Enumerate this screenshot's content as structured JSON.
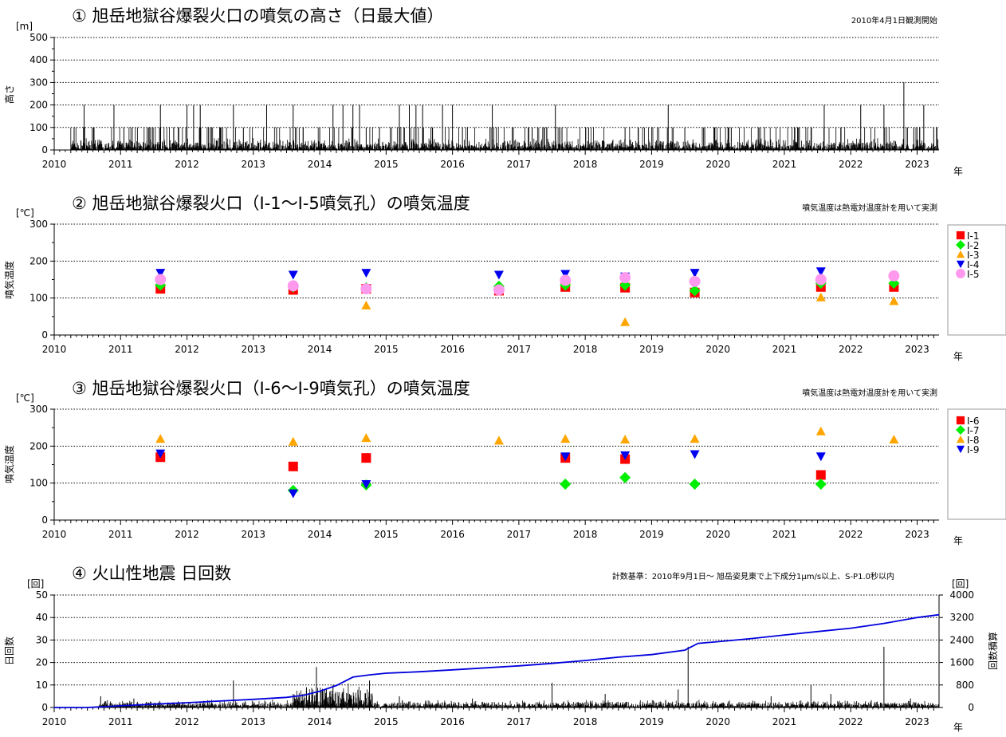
{
  "chart_data": [
    {
      "type": "bar",
      "title": "① 旭岳地獄谷爆裂火口の噴気の高さ（日最大値）",
      "note": "2010年4月1日観測開始",
      "unit": "[m]",
      "ylabel": "高さ",
      "xlabel": "年",
      "xlim": [
        2010,
        2023.33
      ],
      "ylim": [
        0,
        500
      ],
      "yticks": [
        "0",
        "100",
        "200",
        "300",
        "400",
        "500"
      ],
      "xticks": [
        "2010",
        "2011",
        "2012",
        "2013",
        "2014",
        "2015",
        "2016",
        "2017",
        "2018",
        "2019",
        "2020",
        "2021",
        "2022",
        "2023"
      ],
      "series": [
        {
          "values": [
            [
              2010.3,
              100
            ],
            [
              2010.45,
              200
            ],
            [
              2010.6,
              100
            ],
            [
              2010.9,
              200
            ],
            [
              2011.05,
              100
            ],
            [
              2011.4,
              100
            ],
            [
              2011.6,
              200
            ],
            [
              2011.8,
              100
            ],
            [
              2012.0,
              200
            ],
            [
              2012.1,
              200
            ],
            [
              2012.2,
              200
            ],
            [
              2012.35,
              100
            ],
            [
              2012.5,
              100
            ],
            [
              2012.7,
              200
            ],
            [
              2012.85,
              100
            ],
            [
              2013.2,
              200
            ],
            [
              2013.35,
              100
            ],
            [
              2013.6,
              200
            ],
            [
              2013.75,
              100
            ],
            [
              2014.0,
              100
            ],
            [
              2014.2,
              200
            ],
            [
              2014.35,
              200
            ],
            [
              2014.5,
              200
            ],
            [
              2014.6,
              200
            ],
            [
              2014.7,
              100
            ],
            [
              2014.9,
              100
            ],
            [
              2015.2,
              200
            ],
            [
              2015.35,
              200
            ],
            [
              2015.45,
              200
            ],
            [
              2015.55,
              200
            ],
            [
              2015.7,
              100
            ],
            [
              2015.85,
              200
            ],
            [
              2016.0,
              200
            ],
            [
              2016.15,
              100
            ],
            [
              2016.6,
              200
            ],
            [
              2016.9,
              100
            ],
            [
              2017.2,
              100
            ],
            [
              2017.55,
              200
            ],
            [
              2017.65,
              100
            ],
            [
              2018.05,
              100
            ],
            [
              2018.6,
              100
            ],
            [
              2018.8,
              100
            ],
            [
              2019.25,
              200
            ],
            [
              2019.5,
              100
            ],
            [
              2019.8,
              100
            ],
            [
              2020.2,
              100
            ],
            [
              2020.7,
              100
            ],
            [
              2021.2,
              100
            ],
            [
              2021.6,
              200
            ],
            [
              2021.85,
              100
            ],
            [
              2022.15,
              200
            ],
            [
              2022.5,
              200
            ],
            [
              2022.8,
              300
            ],
            [
              2022.95,
              100
            ],
            [
              2023.1,
              200
            ],
            [
              2023.25,
              100
            ]
          ]
        }
      ]
    },
    {
      "type": "scatter",
      "title": "② 旭岳地獄谷爆裂火口（I-1～I-5噴気孔）の噴気温度",
      "note": "噴気温度は熱電対温度計を用いて実測",
      "unit": "[℃]",
      "ylabel": "噴気温度",
      "xlabel": "年",
      "xlim": [
        2010,
        2023.33
      ],
      "ylim": [
        0,
        300
      ],
      "yticks": [
        "0",
        "100",
        "200",
        "300"
      ],
      "xticks": [
        "2010",
        "2011",
        "2012",
        "2013",
        "2014",
        "2015",
        "2016",
        "2017",
        "2018",
        "2019",
        "2020",
        "2021",
        "2022",
        "2023"
      ],
      "series": [
        {
          "name": "I-1",
          "color": "#ff0000",
          "marker": "square",
          "points": [
            [
              2011.6,
              125
            ],
            [
              2013.6,
              122
            ],
            [
              2014.7,
              125
            ],
            [
              2016.7,
              120
            ],
            [
              2017.7,
              130
            ],
            [
              2018.6,
              128
            ],
            [
              2019.65,
              115
            ],
            [
              2021.55,
              130
            ],
            [
              2022.65,
              130
            ]
          ]
        },
        {
          "name": "I-2",
          "color": "#00ee00",
          "marker": "diamond",
          "points": [
            [
              2011.6,
              135
            ],
            [
              2013.6,
              130
            ],
            [
              2014.7,
              128
            ],
            [
              2016.7,
              132
            ],
            [
              2017.7,
              135
            ],
            [
              2018.6,
              135
            ],
            [
              2019.65,
              120
            ],
            [
              2021.55,
              140
            ],
            [
              2022.65,
              140
            ]
          ]
        },
        {
          "name": "I-3",
          "color": "#ffa500",
          "marker": "triangle-up",
          "points": [
            [
              2014.7,
              80
            ],
            [
              2018.6,
              35
            ],
            [
              2021.55,
              102
            ],
            [
              2022.65,
              92
            ]
          ]
        },
        {
          "name": "I-4",
          "color": "#0000ee",
          "marker": "triangle-down",
          "points": [
            [
              2011.6,
              168
            ],
            [
              2013.6,
              163
            ],
            [
              2014.7,
              168
            ],
            [
              2016.7,
              163
            ],
            [
              2017.7,
              165
            ],
            [
              2018.6,
              158
            ],
            [
              2019.65,
              168
            ],
            [
              2021.55,
              172
            ]
          ]
        },
        {
          "name": "I-5",
          "color": "#ff99ee",
          "marker": "circle",
          "points": [
            [
              2011.6,
              150
            ],
            [
              2013.6,
              133
            ],
            [
              2014.7,
              125
            ],
            [
              2016.7,
              122
            ],
            [
              2017.7,
              148
            ],
            [
              2018.6,
              155
            ],
            [
              2019.65,
              145
            ],
            [
              2021.55,
              150
            ],
            [
              2022.65,
              160
            ]
          ]
        }
      ]
    },
    {
      "type": "scatter",
      "title": "③ 旭岳地獄谷爆裂火口（I-6～I-9噴気孔）の噴気温度",
      "note": "噴気温度は熱電対温度計を用いて実測",
      "unit": "[℃]",
      "ylabel": "噴気温度",
      "xlabel": "年",
      "xlim": [
        2010,
        2023.33
      ],
      "ylim": [
        0,
        300
      ],
      "yticks": [
        "0",
        "100",
        "200",
        "300"
      ],
      "xticks": [
        "2010",
        "2011",
        "2012",
        "2013",
        "2014",
        "2015",
        "2016",
        "2017",
        "2018",
        "2019",
        "2020",
        "2021",
        "2022",
        "2023"
      ],
      "series": [
        {
          "name": "I-6",
          "color": "#ff0000",
          "marker": "square",
          "points": [
            [
              2011.6,
              170
            ],
            [
              2013.6,
              145
            ],
            [
              2014.7,
              168
            ],
            [
              2017.7,
              168
            ],
            [
              2018.6,
              165
            ],
            [
              2021.55,
              122
            ]
          ]
        },
        {
          "name": "I-7",
          "color": "#00ee00",
          "marker": "diamond",
          "points": [
            [
              2013.6,
              80
            ],
            [
              2014.7,
              95
            ],
            [
              2017.7,
              97
            ],
            [
              2018.6,
              115
            ],
            [
              2019.65,
              97
            ],
            [
              2021.55,
              97
            ]
          ]
        },
        {
          "name": "I-8",
          "color": "#ffa500",
          "marker": "triangle-up",
          "points": [
            [
              2011.6,
              220
            ],
            [
              2013.6,
              212
            ],
            [
              2014.7,
              222
            ],
            [
              2016.7,
              215
            ],
            [
              2017.7,
              220
            ],
            [
              2018.6,
              218
            ],
            [
              2019.65,
              220
            ],
            [
              2021.55,
              240
            ],
            [
              2022.65,
              218
            ]
          ]
        },
        {
          "name": "I-9",
          "color": "#0000ee",
          "marker": "triangle-down",
          "points": [
            [
              2011.6,
              180
            ],
            [
              2013.6,
              72
            ],
            [
              2014.7,
              97
            ],
            [
              2017.7,
              172
            ],
            [
              2018.6,
              175
            ],
            [
              2019.65,
              178
            ],
            [
              2021.55,
              172
            ]
          ]
        }
      ]
    },
    {
      "type": "bar",
      "title": "④ 火山性地震 日回数",
      "note": "計数基準：2010年9月1日～ 旭岳姿見東で上下成分1μm/s以上、S-P1.0秒以内",
      "unit": "[回]",
      "unit_right": "[回]",
      "ylabel": "日回数",
      "ylabel_right": "回数積算",
      "xlabel": "年",
      "xlim": [
        2010,
        2023.33
      ],
      "ylim": [
        0,
        50
      ],
      "ylim_right": [
        0,
        4000
      ],
      "yticks": [
        "0",
        "10",
        "20",
        "30",
        "40",
        "50"
      ],
      "yticks_right": [
        "0",
        "800",
        "1600",
        "2400",
        "3200",
        "4000"
      ],
      "xticks": [
        "2010",
        "2011",
        "2012",
        "2013",
        "2014",
        "2015",
        "2016",
        "2017",
        "2018",
        "2019",
        "2020",
        "2021",
        "2022",
        "2023"
      ],
      "series": [
        {
          "name": "日回数",
          "color": "#000000",
          "values": [
            [
              2010.7,
              5
            ],
            [
              2011.2,
              4
            ],
            [
              2012.7,
              12
            ],
            [
              2013.6,
              6
            ],
            [
              2013.8,
              9
            ],
            [
              2013.95,
              18
            ],
            [
              2014.1,
              8
            ],
            [
              2014.2,
              10
            ],
            [
              2014.35,
              7
            ],
            [
              2014.45,
              6
            ],
            [
              2014.75,
              12
            ],
            [
              2015.2,
              5
            ],
            [
              2016.3,
              4
            ],
            [
              2017.5,
              11
            ],
            [
              2018.3,
              6
            ],
            [
              2019.55,
              27
            ],
            [
              2019.4,
              8
            ],
            [
              2020.8,
              5
            ],
            [
              2021.4,
              10
            ],
            [
              2021.7,
              6
            ],
            [
              2022.5,
              27
            ],
            [
              2022.9,
              4
            ]
          ]
        },
        {
          "name": "回数積算",
          "color": "#0000dd",
          "axis": "right",
          "values": [
            [
              2010.0,
              0
            ],
            [
              2010.5,
              0
            ],
            [
              2010.67,
              20
            ],
            [
              2011.0,
              60
            ],
            [
              2011.5,
              120
            ],
            [
              2012.0,
              170
            ],
            [
              2012.5,
              230
            ],
            [
              2013.0,
              290
            ],
            [
              2013.5,
              360
            ],
            [
              2013.75,
              430
            ],
            [
              2014.0,
              580
            ],
            [
              2014.25,
              780
            ],
            [
              2014.5,
              1080
            ],
            [
              2014.75,
              1160
            ],
            [
              2015.0,
              1220
            ],
            [
              2015.5,
              1270
            ],
            [
              2016.0,
              1340
            ],
            [
              2016.5,
              1410
            ],
            [
              2017.0,
              1480
            ],
            [
              2017.5,
              1570
            ],
            [
              2018.0,
              1670
            ],
            [
              2018.5,
              1790
            ],
            [
              2019.0,
              1880
            ],
            [
              2019.5,
              2040
            ],
            [
              2019.7,
              2280
            ],
            [
              2020.0,
              2340
            ],
            [
              2020.5,
              2450
            ],
            [
              2021.0,
              2580
            ],
            [
              2021.5,
              2700
            ],
            [
              2022.0,
              2820
            ],
            [
              2022.5,
              2990
            ],
            [
              2023.0,
              3200
            ],
            [
              2023.33,
              3300
            ]
          ]
        }
      ]
    }
  ]
}
